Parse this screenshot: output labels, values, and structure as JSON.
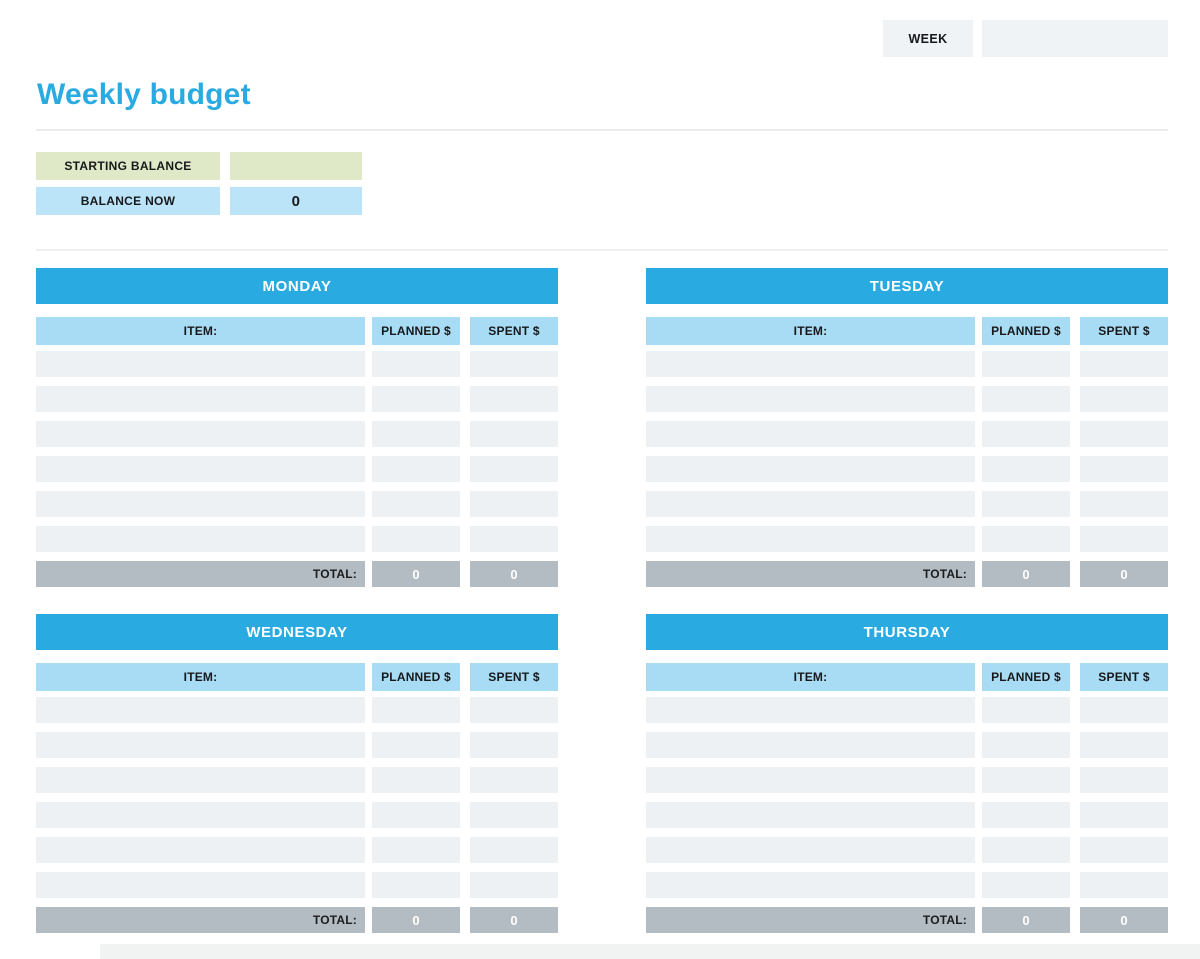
{
  "week": {
    "label": "WEEK",
    "value": ""
  },
  "title": "Weekly budget",
  "balance": {
    "starting_label": "STARTING BALANCE",
    "starting_value": "",
    "now_label": "BALANCE NOW",
    "now_value": "0"
  },
  "columns": {
    "item": "ITEM:",
    "planned": "PLANNED $",
    "spent": "SPENT $"
  },
  "total_label": "TOTAL:",
  "tables": [
    {
      "title": "MONDAY",
      "row_count": 6,
      "total_planned": "0",
      "total_spent": "0"
    },
    {
      "title": "TUESDAY",
      "row_count": 6,
      "total_planned": "0",
      "total_spent": "0"
    },
    {
      "title": "WEDNESDAY",
      "row_count": 6,
      "total_planned": "0",
      "total_spent": "0"
    },
    {
      "title": "THURSDAY",
      "row_count": 6,
      "total_planned": "0",
      "total_spent": "0"
    }
  ],
  "colors": {
    "accent_blue": "#29abe2",
    "column_header_blue": "#a8dbf4",
    "balance_blue": "#bce4f8",
    "starting_green": "#dfe9c7",
    "row_gray": "#eef1f4",
    "total_gray": "#b3bcc2",
    "week_box_gray": "#f0f3f6"
  }
}
